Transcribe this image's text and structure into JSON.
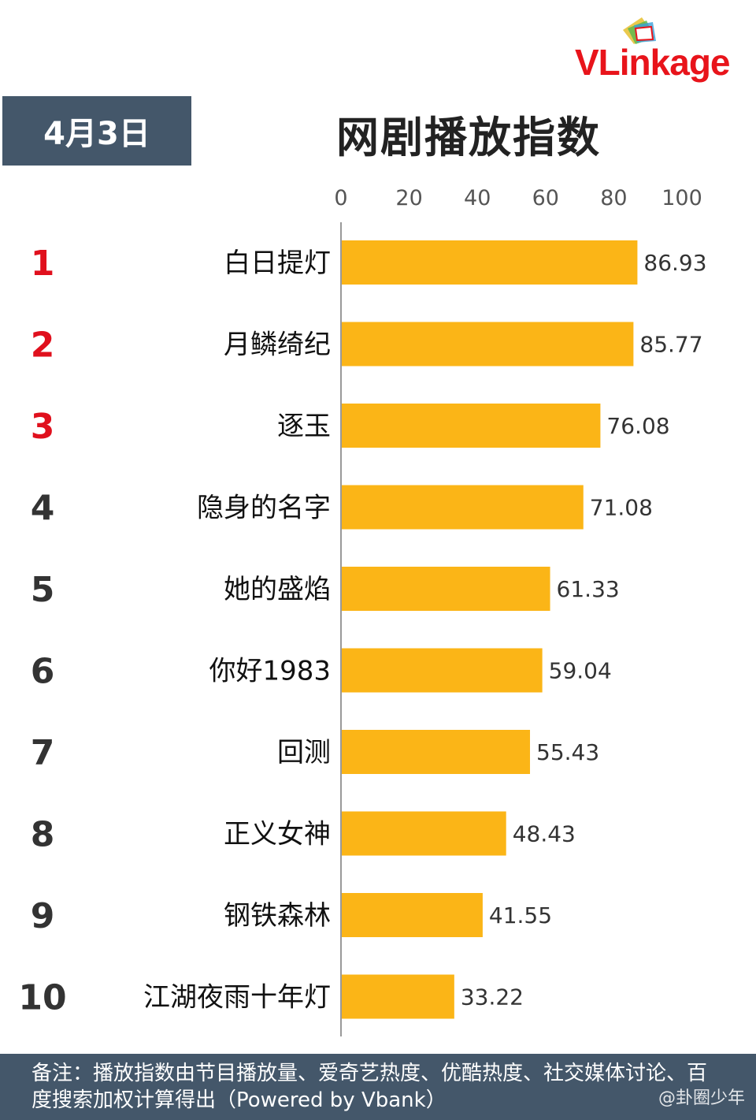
{
  "brand": {
    "logo_text_v": "VL",
    "logo_text_ink": "ink",
    "logo_text_age": "age",
    "red_color": "#e8141b",
    "dark_color": "#3c4a56"
  },
  "header": {
    "date": "4月3日",
    "title": "网剧播放指数"
  },
  "footer": {
    "note": "备注：播放指数由节目播放量、爱奇艺热度、优酷热度、社交媒体讨论、百度搜索加权计算得出（Powered by Vbank）",
    "watermark": "@卦圈少年"
  },
  "chart_data": {
    "type": "bar",
    "orientation": "horizontal",
    "title": "网剧播放指数",
    "xlim": [
      0,
      100
    ],
    "ticks": [
      0,
      20,
      40,
      60,
      80,
      100
    ],
    "grid": false,
    "ranks": [
      "1",
      "2",
      "3",
      "4",
      "5",
      "6",
      "7",
      "8",
      "9",
      "10"
    ],
    "categories": [
      "白日提灯",
      "月鳞绮纪",
      "逐玉",
      "隐身的名字",
      "她的盛焰",
      "你好1983",
      "回测",
      "正义女神",
      "钢铁森林",
      "江湖夜雨十年灯"
    ],
    "values": [
      86.93,
      85.77,
      76.08,
      71.08,
      61.33,
      59.04,
      55.43,
      48.43,
      41.55,
      33.22
    ],
    "bar_color": "#fbb517",
    "top_rank_color": "#e0101d",
    "rank_color": "#333333"
  }
}
